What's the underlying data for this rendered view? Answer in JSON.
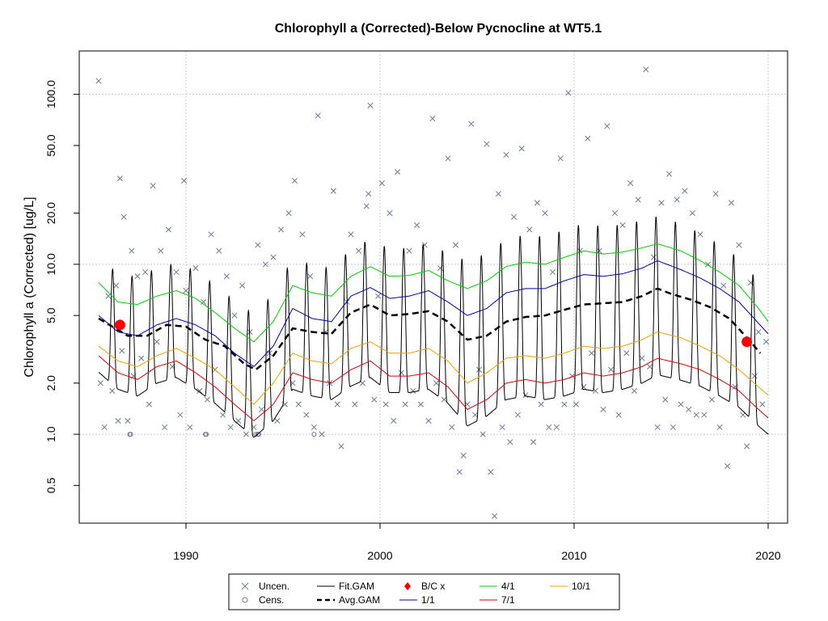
{
  "chart_data": {
    "type": "line",
    "title": "Chlorophyll a (Corrected)-Below Pycnocline at WT5.1",
    "xlabel": "",
    "ylabel": "Chlorophyll a (Corrected) [ug/L]",
    "y_scale": "log",
    "xlim": [
      1984.5,
      2021.0
    ],
    "ylim": [
      0.3,
      180
    ],
    "x_ticks": [
      1990,
      2000,
      2010,
      2020
    ],
    "x_tick_labels": [
      "1990",
      "2000",
      "2010",
      "2020"
    ],
    "y_ticks": [
      0.5,
      1.0,
      2.0,
      5.0,
      10.0,
      20.0,
      50.0,
      100.0
    ],
    "y_tick_labels": [
      "0.5",
      "1.0",
      "2.0",
      "5.0",
      "10.0",
      "20.0",
      "50.0",
      "100.0"
    ],
    "grid": true,
    "legend_position": "bottom",
    "legend": [
      {
        "label": "Uncen.",
        "marker": "x",
        "color": "#6b7b8c"
      },
      {
        "label": "Cens.",
        "marker": "circle-open",
        "color": "#6b7b8c"
      },
      {
        "label": "Fit.GAM",
        "line": "solid",
        "color": "#000000"
      },
      {
        "label": "Avg.GAM",
        "line": "dashed",
        "color": "#000000"
      },
      {
        "label": "B/C x",
        "marker": "diamond",
        "color": "#ff0000"
      },
      {
        "label": "1/1",
        "line": "solid",
        "color": "#0000aa"
      },
      {
        "label": "4/1",
        "line": "solid",
        "color": "#00cc00"
      },
      {
        "label": "7/1",
        "line": "solid",
        "color": "#dd0000"
      },
      {
        "label": "10/1",
        "line": "solid",
        "color": "#e8a000"
      }
    ],
    "uncensored_points": {
      "x": [
        1985.5,
        1985.6,
        1985.8,
        1986.0,
        1986.2,
        1986.4,
        1986.5,
        1986.6,
        1986.7,
        1986.8,
        1987.0,
        1987.2,
        1987.3,
        1987.5,
        1987.7,
        1987.9,
        1988.1,
        1988.3,
        1988.5,
        1988.7,
        1988.9,
        1989.1,
        1989.3,
        1989.5,
        1989.7,
        1989.9,
        1990.0,
        1990.2,
        1990.5,
        1990.7,
        1990.9,
        1991.1,
        1991.3,
        1991.5,
        1991.7,
        1991.9,
        1992.1,
        1992.3,
        1992.5,
        1992.7,
        1992.9,
        1993.1,
        1993.3,
        1993.5,
        1993.7,
        1993.9,
        1994.1,
        1994.3,
        1994.5,
        1994.7,
        1994.9,
        1995.1,
        1995.3,
        1995.5,
        1995.6,
        1995.8,
        1996.0,
        1996.2,
        1996.4,
        1996.6,
        1996.8,
        1997.0,
        1997.2,
        1997.4,
        1997.6,
        1997.8,
        1998.0,
        1998.3,
        1998.5,
        1998.7,
        1998.9,
        1999.1,
        1999.3,
        1999.4,
        1999.5,
        1999.7,
        1999.9,
        2000.1,
        2000.3,
        2000.5,
        2000.7,
        2000.9,
        2001.1,
        2001.3,
        2001.5,
        2001.7,
        2001.9,
        2002.1,
        2002.3,
        2002.5,
        2002.7,
        2002.9,
        2003.1,
        2003.3,
        2003.5,
        2003.7,
        2003.9,
        2004.1,
        2004.3,
        2004.5,
        2004.7,
        2004.9,
        2005.1,
        2005.3,
        2005.5,
        2005.7,
        2005.9,
        2006.1,
        2006.3,
        2006.5,
        2006.7,
        2006.9,
        2007.1,
        2007.3,
        2007.5,
        2007.7,
        2007.9,
        2008.1,
        2008.3,
        2008.5,
        2008.7,
        2008.9,
        2009.1,
        2009.3,
        2009.5,
        2009.7,
        2009.9,
        2010.1,
        2010.3,
        2010.5,
        2010.7,
        2010.9,
        2011.1,
        2011.3,
        2011.5,
        2011.7,
        2011.9,
        2012.1,
        2012.3,
        2012.5,
        2012.7,
        2012.9,
        2013.1,
        2013.3,
        2013.5,
        2013.7,
        2013.9,
        2014.1,
        2014.3,
        2014.5,
        2014.7,
        2014.9,
        2015.1,
        2015.3,
        2015.5,
        2015.7,
        2015.9,
        2016.1,
        2016.3,
        2016.5,
        2016.7,
        2016.9,
        2017.1,
        2017.3,
        2017.5,
        2017.7,
        2017.9,
        2018.1,
        2018.3,
        2018.5,
        2018.7,
        2018.9,
        2019.1,
        2019.3,
        2019.5,
        2019.7,
        2019.9
      ],
      "y": [
        120,
        2.0,
        1.1,
        6.5,
        1.8,
        7.5,
        1.2,
        32,
        3.1,
        19,
        1.2,
        12,
        2.2,
        8.5,
        2.8,
        9.0,
        1.5,
        29,
        3.5,
        12,
        1.1,
        16,
        2.5,
        9.0,
        1.3,
        31,
        7.0,
        1.1,
        9.5,
        1.8,
        6.0,
        1.6,
        15,
        2.4,
        12,
        1.3,
        8.5,
        1.1,
        5.0,
        1.2,
        7.5,
        1.0,
        4.0,
        1.1,
        13,
        1.4,
        10,
        3.0,
        11,
        1.2,
        16,
        1.5,
        20,
        2.0,
        31,
        1.5,
        15,
        1.3,
        8.5,
        1.1,
        75,
        1.0,
        4.0,
        2.0,
        27,
        1.5,
        0.85,
        6.0,
        15,
        1.5,
        12,
        2.0,
        22,
        26,
        86,
        1.6,
        6.5,
        30,
        1.5,
        20,
        1.2,
        35,
        2.3,
        1.5,
        12,
        1.8,
        17,
        1.5,
        13,
        1.2,
        72,
        2.0,
        9.5,
        1.6,
        42,
        1.1,
        13,
        0.6,
        0.75,
        1.5,
        67,
        1.3,
        2.4,
        1.0,
        51,
        0.6,
        0.33,
        26,
        1.1,
        44,
        0.9,
        19,
        1.3,
        48,
        1.7,
        16,
        0.9,
        23,
        1.5,
        20,
        1.1,
        9.0,
        1.1,
        42,
        1.5,
        102,
        2.2,
        1.5,
        12,
        1.9,
        55,
        3.0,
        1.8,
        12,
        1.4,
        65,
        2.4,
        20,
        1.3,
        17,
        3.0,
        30,
        1.8,
        24,
        2.8,
        140,
        2.5,
        11,
        1.1,
        23,
        1.6,
        34,
        1.1,
        24,
        1.5,
        27,
        1.4,
        20,
        1.3,
        15,
        1.3,
        10,
        1.6,
        26,
        1.1,
        7.5,
        0.65,
        23,
        1.9,
        13,
        1.3,
        0.85,
        7.8,
        2.2,
        4.0,
        1.5,
        3.5
      ],
      "color": "#6b7b8c"
    },
    "censored_points": {
      "x": [
        1987.1,
        1987.15,
        1991.0,
        1991.05,
        1993.6,
        1993.7,
        1993.75,
        1996.6
      ],
      "y": [
        1.0,
        1.0,
        1.0,
        1.0,
        1.0,
        1.0,
        1.0,
        1.0
      ],
      "color": "#6b7b8c"
    },
    "bc_points": {
      "x": [
        1986.6,
        2018.9
      ],
      "y": [
        4.4,
        3.5
      ],
      "color": "#ff0000"
    },
    "series": [
      {
        "name": "Avg.GAM",
        "x": [
          1985.5,
          1987.0,
          1988.0,
          1989.0,
          1990.0,
          1991.0,
          1992.0,
          1993.0,
          1993.6,
          1994.5,
          1995.5,
          1996.5,
          1997.5,
          1998.5,
          1999.5,
          2000.5,
          2001.5,
          2002.5,
          2003.5,
          2004.5,
          2005.5,
          2006.5,
          2007.5,
          2008.5,
          2009.5,
          2010.5,
          2011.5,
          2012.5,
          2013.5,
          2014.3,
          2015.0,
          2016.0,
          2017.0,
          2018.0,
          2019.0,
          2019.6
        ],
        "y": [
          4.8,
          3.8,
          3.8,
          4.4,
          4.3,
          3.6,
          3.3,
          2.6,
          2.4,
          2.9,
          4.2,
          4.0,
          3.9,
          5.2,
          5.8,
          5.0,
          5.1,
          5.3,
          4.6,
          3.6,
          3.8,
          4.6,
          4.9,
          5.0,
          5.4,
          5.8,
          5.9,
          6.0,
          6.5,
          7.2,
          6.7,
          6.2,
          5.6,
          4.8,
          3.6,
          3.0
        ],
        "color": "#000000",
        "dash": "dashed"
      },
      {
        "name": "1/1",
        "x": [
          1985.5,
          1986.5,
          1987.5,
          1988.5,
          1989.5,
          1990.5,
          1991.5,
          1992.5,
          1993.5,
          1994.5,
          1995.5,
          1996.5,
          1997.5,
          1998.5,
          1999.5,
          2000.5,
          2001.5,
          2002.5,
          2003.5,
          2004.5,
          2005.5,
          2006.5,
          2007.5,
          2008.5,
          2009.5,
          2010.5,
          2011.5,
          2012.5,
          2013.5,
          2014.3,
          2015.5,
          2016.5,
          2017.5,
          2018.5,
          2019.5,
          2020.0
        ],
        "y": [
          5.0,
          4.0,
          3.8,
          4.4,
          4.8,
          4.4,
          3.8,
          3.0,
          2.5,
          3.3,
          5.5,
          4.8,
          4.6,
          6.5,
          7.3,
          6.3,
          6.5,
          7.0,
          6.0,
          5.0,
          5.5,
          6.8,
          7.2,
          7.2,
          8.0,
          8.7,
          8.5,
          8.8,
          9.5,
          10.5,
          9.3,
          8.3,
          7.2,
          6.0,
          4.5,
          3.9
        ],
        "color": "#0000aa"
      },
      {
        "name": "4/1",
        "x": [
          1985.5,
          1986.5,
          1987.5,
          1988.5,
          1989.5,
          1990.5,
          1991.5,
          1992.5,
          1993.5,
          1994.5,
          1995.5,
          1996.5,
          1997.5,
          1998.5,
          1999.5,
          2000.5,
          2001.5,
          2002.5,
          2003.5,
          2004.5,
          2005.5,
          2006.5,
          2007.5,
          2008.5,
          2009.5,
          2010.5,
          2011.5,
          2012.5,
          2013.5,
          2014.3,
          2015.5,
          2016.5,
          2017.5,
          2018.5,
          2019.5,
          2020.0
        ],
        "y": [
          7.8,
          6.0,
          5.8,
          6.5,
          7.0,
          6.3,
          5.2,
          4.2,
          3.5,
          4.6,
          7.5,
          6.8,
          6.5,
          8.5,
          9.7,
          8.5,
          8.6,
          9.2,
          8.0,
          7.2,
          8.0,
          9.7,
          10.3,
          10.0,
          11.0,
          12.0,
          11.5,
          11.8,
          12.5,
          13.2,
          12.0,
          10.5,
          9.0,
          7.5,
          5.5,
          4.6
        ],
        "color": "#00cc00"
      },
      {
        "name": "7/1",
        "x": [
          1985.5,
          1986.5,
          1987.5,
          1988.5,
          1989.5,
          1990.5,
          1991.5,
          1992.5,
          1993.5,
          1994.5,
          1995.5,
          1996.5,
          1997.5,
          1998.5,
          1999.5,
          2000.5,
          2001.5,
          2002.5,
          2003.5,
          2004.5,
          2005.5,
          2006.5,
          2007.5,
          2008.5,
          2009.5,
          2010.5,
          2011.5,
          2012.5,
          2013.5,
          2014.3,
          2015.5,
          2016.5,
          2017.5,
          2018.5,
          2019.5,
          2020.0
        ],
        "y": [
          2.9,
          2.3,
          2.1,
          2.5,
          2.7,
          2.3,
          1.9,
          1.5,
          1.2,
          1.5,
          2.3,
          2.1,
          2.0,
          2.4,
          2.7,
          2.2,
          2.2,
          2.3,
          1.9,
          1.4,
          1.6,
          2.0,
          2.1,
          2.0,
          2.1,
          2.3,
          2.2,
          2.3,
          2.5,
          2.8,
          2.6,
          2.4,
          2.1,
          1.8,
          1.4,
          1.25
        ],
        "color": "#dd0000"
      },
      {
        "name": "10/1",
        "x": [
          1985.5,
          1986.5,
          1987.5,
          1988.5,
          1989.5,
          1990.5,
          1991.5,
          1992.5,
          1993.5,
          1994.5,
          1995.5,
          1996.5,
          1997.5,
          1998.5,
          1999.5,
          2000.5,
          2001.5,
          2002.5,
          2003.5,
          2004.5,
          2005.5,
          2006.5,
          2007.5,
          2008.5,
          2009.5,
          2010.5,
          2011.5,
          2012.5,
          2013.5,
          2014.3,
          2015.5,
          2016.5,
          2017.5,
          2018.5,
          2019.5,
          2020.0
        ],
        "y": [
          3.3,
          2.7,
          2.5,
          2.9,
          3.2,
          2.8,
          2.4,
          1.9,
          1.5,
          2.0,
          3.0,
          2.7,
          2.6,
          3.2,
          3.5,
          3.0,
          3.0,
          3.2,
          2.7,
          2.0,
          2.3,
          2.8,
          2.9,
          2.8,
          3.0,
          3.3,
          3.2,
          3.3,
          3.6,
          4.0,
          3.7,
          3.3,
          2.9,
          2.4,
          1.9,
          1.7
        ],
        "color": "#e8a000"
      }
    ],
    "fit_gam": {
      "name": "Fit.GAM",
      "color": "#000000",
      "note_values": "seasonal oscillation around Avg.GAM",
      "start_year": 1985.5,
      "end_year": 2020.0
    }
  }
}
